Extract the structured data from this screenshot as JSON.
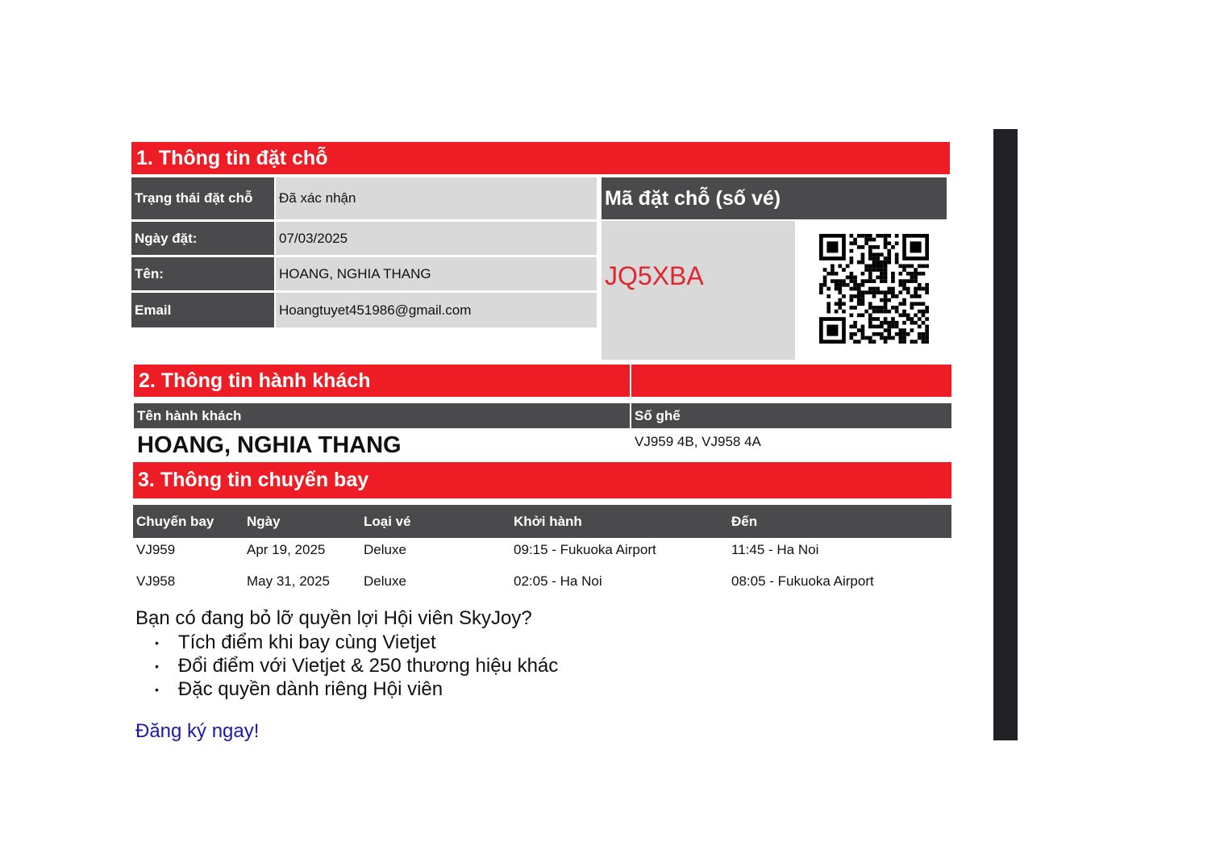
{
  "section1": {
    "title": "1. Thông tin đặt chỗ",
    "rows": [
      {
        "label": "Trạng thái đặt chỗ",
        "value": "Đã xác nhận"
      },
      {
        "label": "Ngày đặt:",
        "value": "07/03/2025"
      },
      {
        "label": "Tên:",
        "value": "HOANG, NGHIA THANG"
      },
      {
        "label": "Email",
        "value": "Hoangtuyet451986@gmail.com"
      }
    ],
    "code_label": "Mã đặt chỗ (số vé)",
    "code": "JQ5XBA",
    "code_color": "#e3262e",
    "qr_icon": "qr-code-icon"
  },
  "section2": {
    "title": "2. Thông tin hành khách",
    "name_header": "Tên hành khách",
    "seat_header": "Số ghế",
    "passenger_name": "HOANG, NGHIA THANG",
    "seats": "VJ959 4B, VJ958 4A"
  },
  "section3": {
    "title": "3. Thông tin chuyến bay",
    "headers": [
      "Chuyến bay",
      "Ngày",
      "Loại vé",
      "Khởi hành",
      "Đến"
    ],
    "rows": [
      [
        "VJ959",
        "Apr 19, 2025",
        "Deluxe",
        "09:15 - Fukuoka Airport",
        "11:45 - Ha Noi"
      ],
      [
        "VJ958",
        "May 31, 2025",
        "Deluxe",
        "02:05 - Ha Noi",
        "08:05 - Fukuoka Airport"
      ]
    ]
  },
  "promo": {
    "question": "Bạn có đang bỏ lỡ quyền lợi Hội viên SkyJoy?",
    "bullets": [
      "Tích điểm khi bay cùng Vietjet",
      "Đổi điểm với Vietjet & 250 thương hiệu khác",
      "Đặc quyền dành riêng Hội viên"
    ],
    "bullet_symbol": "•",
    "link": "Đăng ký ngay!"
  },
  "colors": {
    "red": "#ee1c25",
    "dark": "#4a4a4c",
    "gray": "#d9d9d9",
    "link": "#1a1aa6"
  }
}
